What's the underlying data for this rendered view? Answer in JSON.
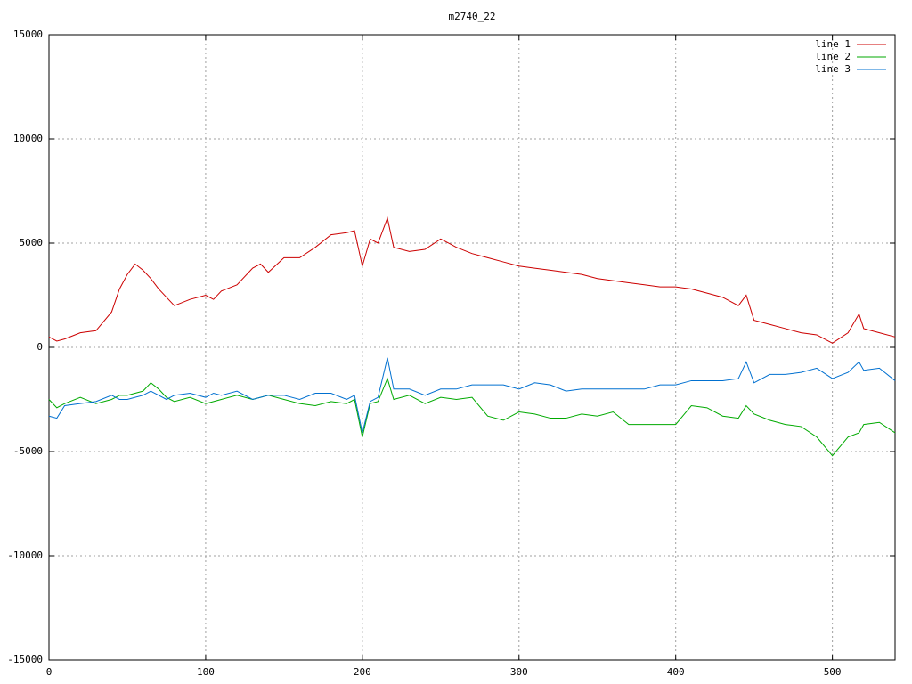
{
  "chart_data": {
    "type": "line",
    "title": "m2740_22",
    "x": [
      0,
      5,
      10,
      20,
      30,
      40,
      45,
      50,
      55,
      60,
      65,
      70,
      75,
      80,
      90,
      100,
      105,
      110,
      120,
      130,
      135,
      140,
      150,
      160,
      170,
      180,
      190,
      195,
      200,
      205,
      210,
      216,
      220,
      230,
      240,
      250,
      260,
      270,
      280,
      290,
      300,
      310,
      320,
      330,
      340,
      350,
      360,
      370,
      380,
      390,
      400,
      410,
      420,
      430,
      440,
      445,
      450,
      460,
      470,
      480,
      490,
      500,
      510,
      517,
      520,
      530,
      540
    ],
    "series": [
      {
        "name": "line 1",
        "color": "#cc0000",
        "values": [
          500,
          300,
          400,
          700,
          800,
          1700,
          2800,
          3500,
          4000,
          3700,
          3300,
          2800,
          2400,
          2000,
          2300,
          2500,
          2300,
          2700,
          3000,
          3800,
          4000,
          3600,
          4300,
          4300,
          4800,
          5400,
          5500,
          5600,
          3900,
          5200,
          5000,
          6200,
          4800,
          4600,
          4700,
          5200,
          4800,
          4500,
          4300,
          4100,
          3900,
          3800,
          3700,
          3600,
          3500,
          3300,
          3200,
          3100,
          3000,
          2900,
          2900,
          2800,
          2600,
          2400,
          2000,
          2500,
          1300,
          1100,
          900,
          700,
          600,
          200,
          700,
          1600,
          900,
          700,
          500
        ]
      },
      {
        "name": "line 2",
        "color": "#00aa00",
        "values": [
          -2500,
          -2900,
          -2700,
          -2400,
          -2700,
          -2500,
          -2300,
          -2300,
          -2200,
          -2100,
          -1700,
          -2000,
          -2400,
          -2600,
          -2400,
          -2700,
          -2600,
          -2500,
          -2300,
          -2500,
          -2400,
          -2300,
          -2500,
          -2700,
          -2800,
          -2600,
          -2700,
          -2500,
          -4300,
          -2700,
          -2600,
          -1500,
          -2500,
          -2300,
          -2700,
          -2400,
          -2500,
          -2400,
          -3300,
          -3500,
          -3100,
          -3200,
          -3400,
          -3400,
          -3200,
          -3300,
          -3100,
          -3700,
          -3700,
          -3700,
          -3700,
          -2800,
          -2900,
          -3300,
          -3400,
          -2800,
          -3200,
          -3500,
          -3700,
          -3800,
          -4300,
          -5200,
          -4300,
          -4100,
          -3700,
          -3600,
          -4100
        ]
      },
      {
        "name": "line 3",
        "color": "#0070d0",
        "values": [
          -3300,
          -3400,
          -2800,
          -2700,
          -2600,
          -2300,
          -2500,
          -2500,
          -2400,
          -2300,
          -2100,
          -2300,
          -2500,
          -2300,
          -2200,
          -2400,
          -2200,
          -2300,
          -2100,
          -2500,
          -2400,
          -2300,
          -2300,
          -2500,
          -2200,
          -2200,
          -2500,
          -2300,
          -4100,
          -2600,
          -2400,
          -500,
          -2000,
          -2000,
          -2300,
          -2000,
          -2000,
          -1800,
          -1800,
          -1800,
          -2000,
          -1700,
          -1800,
          -2100,
          -2000,
          -2000,
          -2000,
          -2000,
          -2000,
          -1800,
          -1800,
          -1600,
          -1600,
          -1600,
          -1500,
          -700,
          -1700,
          -1300,
          -1300,
          -1200,
          -1000,
          -1500,
          -1200,
          -700,
          -1100,
          -1000,
          -1600
        ]
      }
    ],
    "xlim": [
      0,
      540
    ],
    "xticks": [
      0,
      100,
      200,
      300,
      400,
      500
    ],
    "ylim": [
      -15000,
      15000
    ],
    "yticks": [
      -15000,
      -10000,
      -5000,
      0,
      5000,
      10000,
      15000
    ],
    "grid": true,
    "legend": "top-right"
  }
}
